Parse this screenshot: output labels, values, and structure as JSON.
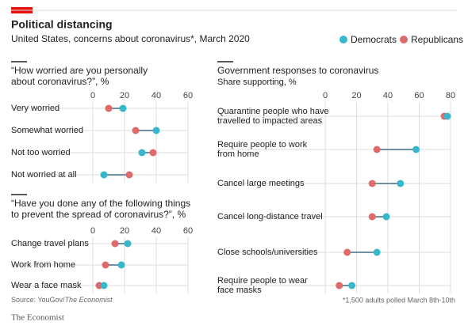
{
  "title": "Political distancing",
  "subtitle": "United States, concerns about coronavirus*, March 2020",
  "source": [
    "Source: YouGov/",
    "The Economist"
  ],
  "footnote": "*1,500 adults polled March 8th-10th",
  "brand": "The Economist",
  "chart_data": [
    {
      "type": "dot",
      "title": [
        "“How worried are you personally",
        "about coronavirus?”, %"
      ],
      "categories": [
        [
          "Very worried"
        ],
        [
          "Somewhat worried"
        ],
        [
          "Not too worried"
        ],
        [
          "Not worried at all"
        ]
      ],
      "series": [
        {
          "name": "Democrats",
          "color": "#36b7cc",
          "values": [
            19,
            40,
            31,
            7
          ]
        },
        {
          "name": "Republicans",
          "color": "#e06a6a",
          "values": [
            10,
            27,
            38,
            23
          ]
        }
      ],
      "xlim": [
        0,
        60
      ],
      "xticks": [
        0,
        20,
        40,
        60
      ],
      "grid": true
    },
    {
      "type": "dot",
      "title": [
        "“Have you done any of the following things",
        "to prevent the spread of coronavirus?”, %"
      ],
      "categories": [
        [
          "Change travel plans"
        ],
        [
          "Work from home"
        ],
        [
          "Wear a face mask"
        ]
      ],
      "series": [
        {
          "name": "Democrats",
          "color": "#36b7cc",
          "values": [
            22,
            18,
            7
          ]
        },
        {
          "name": "Republicans",
          "color": "#e06a6a",
          "values": [
            14,
            8,
            4
          ]
        }
      ],
      "xlim": [
        0,
        60
      ],
      "xticks": [
        0,
        20,
        40,
        60
      ],
      "grid": true
    },
    {
      "type": "dot",
      "title": [
        "Government responses to coronavirus"
      ],
      "subtitle": "Share supporting, %",
      "categories": [
        [
          "Quarantine people who have",
          "travelled to impacted areas"
        ],
        [
          "Require people to work",
          "from home"
        ],
        [
          "Cancel large meetings"
        ],
        [
          "Cancel long-distance travel"
        ],
        [
          "Close schools/universities"
        ],
        [
          "Require people to wear",
          "face masks"
        ]
      ],
      "series": [
        {
          "name": "Democrats",
          "color": "#36b7cc",
          "values": [
            78,
            58,
            48,
            39,
            33,
            17
          ]
        },
        {
          "name": "Republicans",
          "color": "#e06a6a",
          "values": [
            76,
            33,
            30,
            30,
            14,
            9
          ]
        }
      ],
      "xlim": [
        0,
        80
      ],
      "xticks": [
        0,
        20,
        40,
        60,
        80
      ],
      "grid": true
    }
  ]
}
